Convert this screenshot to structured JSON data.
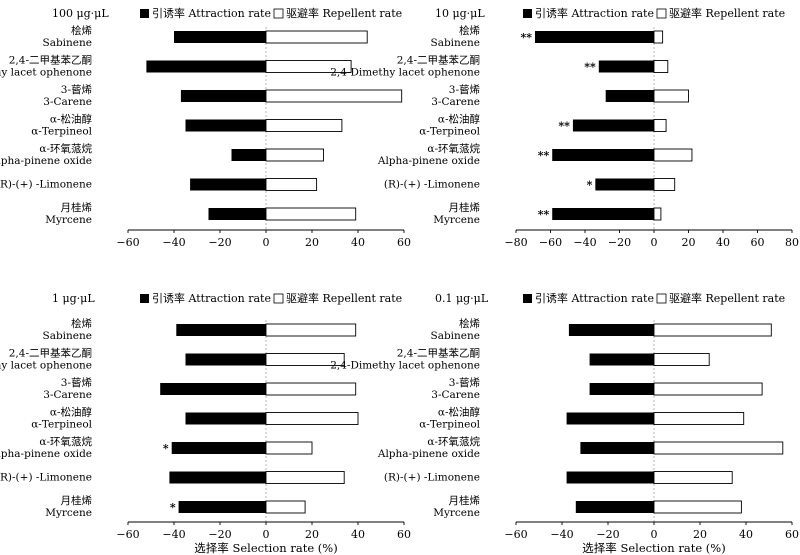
{
  "figure": {
    "xlabel": "选择率 Selection rate (%)"
  },
  "legend": {
    "attraction": "引诱率 Attraction rate",
    "repellent": "驱避率 Repellent rate"
  },
  "chart_data": [
    {
      "type": "bar",
      "title": "100 μg·μL",
      "categories": [
        [
          "桧烯",
          "Sabinene"
        ],
        [
          "2,4-二甲基苯乙酮",
          "2,4-Dimethy lacet ophenone"
        ],
        [
          "3-蒈烯",
          "3-Carene"
        ],
        [
          "α-松油醇",
          "α-Terpineol"
        ],
        [
          "α-环氧蒎烷",
          "Alpha-pinene oxide"
        ],
        [
          "(R)-(+) -Limonene"
        ],
        [
          "月桂烯",
          "Myrcene"
        ]
      ],
      "series": [
        {
          "name": "引诱率 Attraction rate",
          "values": [
            -40,
            -52,
            -37,
            -35,
            -15,
            -33,
            -25
          ]
        },
        {
          "name": "驱避率 Repellent rate",
          "values": [
            44,
            37,
            59,
            33,
            25,
            22,
            39
          ]
        }
      ],
      "significance": [
        "",
        "",
        "",
        "",
        "",
        "",
        ""
      ],
      "xlim": [
        -60,
        60
      ],
      "xticks": [
        -60,
        -40,
        -20,
        0,
        20,
        40,
        60
      ],
      "xticklabels": [
        "−60",
        "−40",
        "−20",
        "0",
        "20",
        "40",
        "60"
      ],
      "legend": "top"
    },
    {
      "type": "bar",
      "title": "10 μg·μL",
      "categories": [
        [
          "桧烯",
          "Sabinene"
        ],
        [
          "2,4-二甲基苯乙酮",
          "2,4-Dimethy lacet ophenone"
        ],
        [
          "3-蒈烯",
          "3-Carene"
        ],
        [
          "α-松油醇",
          "α-Terpineol"
        ],
        [
          "α-环氧蒎烷",
          "Alpha-pinene oxide"
        ],
        [
          "(R)-(+) -Limonene"
        ],
        [
          "月桂烯",
          "Myrcene"
        ]
      ],
      "series": [
        {
          "name": "引诱率 Attraction rate",
          "values": [
            -69,
            -32,
            -28,
            -47,
            -59,
            -34,
            -59
          ]
        },
        {
          "name": "驱避率 Repellent rate",
          "values": [
            5,
            8,
            20,
            7,
            22,
            12,
            4
          ]
        }
      ],
      "significance": [
        "**",
        "**",
        "",
        "**",
        "**",
        "*",
        "**"
      ],
      "xlim": [
        -80,
        80
      ],
      "xticks": [
        -80,
        -60,
        -40,
        -20,
        0,
        20,
        40,
        60,
        80
      ],
      "xticklabels": [
        "−80",
        "−60",
        "−40",
        "−20",
        "0",
        "20",
        "40",
        "60",
        "80"
      ],
      "legend": "top"
    },
    {
      "type": "bar",
      "title": "1 μg·μL",
      "categories": [
        [
          "桧烯",
          "Sabinene"
        ],
        [
          "2,4-二甲基苯乙酮",
          "2,4-Dimethy lacet ophenone"
        ],
        [
          "3-蒈烯",
          "3-Carene"
        ],
        [
          "α-松油醇",
          "α-Terpineol"
        ],
        [
          "α-环氧蒎烷",
          "Alpha-pinene oxide"
        ],
        [
          "(R)-(+) -Limonene"
        ],
        [
          "月桂烯",
          "Myrcene"
        ]
      ],
      "series": [
        {
          "name": "引诱率 Attraction rate",
          "values": [
            -39,
            -35,
            -46,
            -35,
            -41,
            -42,
            -38
          ]
        },
        {
          "name": "驱避率 Repellent rate",
          "values": [
            39,
            34,
            39,
            40,
            20,
            34,
            17
          ]
        }
      ],
      "significance": [
        "",
        "",
        "",
        "",
        "*",
        "",
        "*"
      ],
      "xlim": [
        -60,
        60
      ],
      "xticks": [
        -60,
        -40,
        -20,
        0,
        20,
        40,
        60
      ],
      "xticklabels": [
        "−60",
        "−40",
        "−20",
        "0",
        "20",
        "40",
        "60"
      ],
      "legend": "top"
    },
    {
      "type": "bar",
      "title": "0.1 μg·μL",
      "categories": [
        [
          "桧烯",
          "Sabinene"
        ],
        [
          "2,4-二甲基苯乙酮",
          "2,4-Dimethy lacet ophenone"
        ],
        [
          "3-蒈烯",
          "3-Carene"
        ],
        [
          "α-松油醇",
          "α-Terpineol"
        ],
        [
          "α-环氧蒎烷",
          "Alpha-pinene oxide"
        ],
        [
          "(R)-(+) -Limonene"
        ],
        [
          "月桂烯",
          "Myrcene"
        ]
      ],
      "series": [
        {
          "name": "引诱率 Attraction rate",
          "values": [
            -37,
            -28,
            -28,
            -38,
            -32,
            -38,
            -34
          ]
        },
        {
          "name": "驱避率 Repellent rate",
          "values": [
            51,
            24,
            47,
            39,
            56,
            34,
            38
          ]
        }
      ],
      "significance": [
        "",
        "",
        "",
        "",
        "",
        "",
        ""
      ],
      "xlim": [
        -60,
        60
      ],
      "xticks": [
        -60,
        -40,
        -20,
        0,
        20,
        40,
        60
      ],
      "xticklabels": [
        "−60",
        "−40",
        "−20",
        "0",
        "20",
        "40",
        "60"
      ],
      "legend": "top"
    }
  ]
}
